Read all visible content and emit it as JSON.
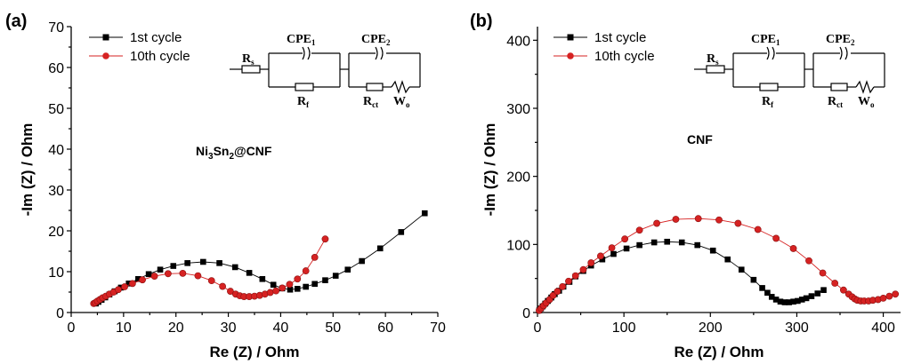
{
  "chart_data": [
    {
      "type": "scatter",
      "panel_label": "(a)",
      "title": "",
      "annotation": {
        "base": "Ni",
        "sub1": "3",
        "mid": "Sn",
        "sub2": "2",
        "tail": "@CNF"
      },
      "xlabel": "Re (Z) / Ohm",
      "ylabel": "-Im (Z) / Ohm",
      "xlim": [
        0,
        70
      ],
      "ylim": [
        0,
        70
      ],
      "xticks": [
        "0",
        "10",
        "20",
        "30",
        "40",
        "50",
        "60",
        "70"
      ],
      "yticks": [
        "0",
        "10",
        "20",
        "30",
        "40",
        "50",
        "60",
        "70"
      ],
      "legend_position": "top-left",
      "series": [
        {
          "name": "1st cycle",
          "color": "#000000",
          "marker": "square",
          "x": [
            4.7,
            5.2,
            5.8,
            6.5,
            7.3,
            8.3,
            9.5,
            11.0,
            12.8,
            14.8,
            17.0,
            19.5,
            22.2,
            25.2,
            28.3,
            31.3,
            34.0,
            36.5,
            38.6,
            40.3,
            41.8,
            43.2,
            44.8,
            46.5,
            48.5,
            50.5,
            52.8,
            55.5,
            59.0,
            63.0,
            67.5
          ],
          "y": [
            2.2,
            2.6,
            3.1,
            3.7,
            4.4,
            5.2,
            6.1,
            7.1,
            8.2,
            9.4,
            10.5,
            11.4,
            12.1,
            12.4,
            12.1,
            11.1,
            9.7,
            8.2,
            6.8,
            5.9,
            5.6,
            5.8,
            6.3,
            7.0,
            7.9,
            9.0,
            10.5,
            12.6,
            15.7,
            19.7,
            24.3
          ]
        },
        {
          "name": "10th cycle",
          "color": "#d62222",
          "marker": "circle",
          "x": [
            4.3,
            4.6,
            5.0,
            5.5,
            6.0,
            6.6,
            7.3,
            8.1,
            9.0,
            10.2,
            11.7,
            13.6,
            15.9,
            18.5,
            21.3,
            24.2,
            26.8,
            28.9,
            30.4,
            31.4,
            32.2,
            33.0,
            34.0,
            35.0,
            36.0,
            37.0,
            38.0,
            39.1,
            40.3,
            41.7,
            43.2,
            44.8,
            46.5,
            48.5
          ],
          "y": [
            2.2,
            2.4,
            2.8,
            3.2,
            3.6,
            4.0,
            4.5,
            5.0,
            5.6,
            6.3,
            7.1,
            8.0,
            8.9,
            9.5,
            9.6,
            9.0,
            7.8,
            6.4,
            5.2,
            4.5,
            4.1,
            3.9,
            3.9,
            4.0,
            4.2,
            4.5,
            4.9,
            5.3,
            6.0,
            6.9,
            8.2,
            10.2,
            13.5,
            18.0
          ]
        }
      ]
    },
    {
      "type": "scatter",
      "panel_label": "(b)",
      "title": "",
      "annotation": {
        "base": "CNF",
        "sub1": "",
        "mid": "",
        "sub2": "",
        "tail": ""
      },
      "xlabel": "Re (Z) / Ohm",
      "ylabel": "-Im (Z) / Ohm",
      "xlim": [
        0,
        420
      ],
      "ylim": [
        0,
        420
      ],
      "xticks": [
        "0",
        "100",
        "200",
        "300",
        "400"
      ],
      "yticks": [
        "0",
        "100",
        "200",
        "300",
        "400"
      ],
      "legend_position": "top-left",
      "series": [
        {
          "name": "1st cycle",
          "color": "#000000",
          "marker": "square",
          "x": [
            2,
            4,
            6,
            9,
            12,
            16,
            20,
            25,
            30,
            37,
            44,
            53,
            62,
            75,
            88,
            103,
            118,
            135,
            150,
            167,
            185,
            203,
            220,
            236,
            250,
            260,
            266,
            271,
            276,
            281,
            286,
            291,
            296,
            301,
            306,
            311,
            317,
            324,
            331
          ],
          "y": [
            3,
            6,
            9,
            13,
            17,
            22,
            27,
            32,
            38,
            45,
            53,
            61,
            69,
            78,
            86,
            94,
            99,
            103,
            104,
            103,
            99,
            91,
            78,
            63,
            48,
            36,
            29,
            23,
            19,
            16,
            15,
            15,
            16,
            17,
            19,
            21,
            24,
            28,
            33
          ]
        },
        {
          "name": "10th cycle",
          "color": "#d62222",
          "marker": "circle",
          "x": [
            2,
            4,
            7,
            10,
            14,
            18,
            23,
            29,
            36,
            44,
            53,
            62,
            73,
            86,
            101,
            118,
            138,
            160,
            186,
            210,
            232,
            255,
            276,
            296,
            314,
            330,
            344,
            354,
            360,
            364,
            367,
            370,
            374,
            378,
            383,
            388,
            394,
            400,
            407,
            414
          ],
          "y": [
            3,
            6,
            10,
            14,
            19,
            25,
            31,
            38,
            46,
            54,
            63,
            73,
            83,
            95,
            108,
            121,
            131,
            137,
            138,
            136,
            131,
            122,
            109,
            94,
            76,
            58,
            43,
            33,
            27,
            23,
            20,
            18,
            17,
            17,
            17,
            18,
            19,
            21,
            24,
            27
          ]
        }
      ]
    }
  ],
  "circuit_labels": {
    "rs": "R",
    "rs_sub": "s",
    "cpe1": "CPE",
    "cpe1_sub": "1",
    "cpe2": "CPE",
    "cpe2_sub": "2",
    "rf": "R",
    "rf_sub": "f",
    "rct": "R",
    "rct_sub": "ct",
    "wo": "W",
    "wo_sub": "o"
  }
}
